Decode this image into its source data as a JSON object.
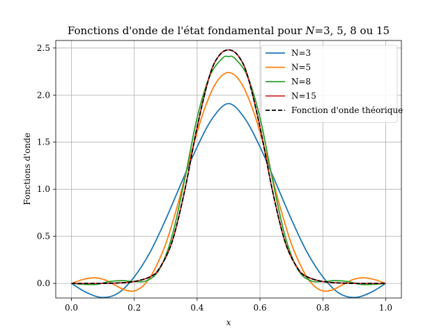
{
  "chart_data": {
    "type": "line",
    "title": "Fonctions d'onde de l'état fondamental pour N=3, 5, 8 ou 15",
    "title_parts": {
      "prefix": "Fonctions d'onde de l'état fondamental pour ",
      "var": "N",
      "suffix": "=3, 5, 8 ou 15"
    },
    "xlabel": "x",
    "ylabel": "Fonctions d'onde",
    "xlim": [
      -0.05,
      1.05
    ],
    "ylim": [
      -0.155,
      2.58
    ],
    "xticks": [
      0.0,
      0.2,
      0.4,
      0.6,
      0.8,
      1.0
    ],
    "xtick_labels": [
      "0.0",
      "0.2",
      "0.4",
      "0.6",
      "0.8",
      "1.0"
    ],
    "yticks": [
      0.0,
      0.5,
      1.0,
      1.5,
      2.0,
      2.5
    ],
    "ytick_labels": [
      "0.0",
      "0.5",
      "1.0",
      "1.5",
      "2.0",
      "2.5"
    ],
    "grid": true,
    "legend_position": "upper-right",
    "series": [
      {
        "name": "N=3",
        "color": "#1f77b4",
        "style": "solid",
        "x": [
          0,
          0.05,
          0.1,
          0.15,
          0.2,
          0.25,
          0.3,
          0.35,
          0.4,
          0.45,
          0.5,
          0.55,
          0.6,
          0.65,
          0.7,
          0.75,
          0.8,
          0.85,
          0.9,
          0.95,
          1.0
        ],
        "y": [
          0.0,
          -0.1,
          -0.15,
          -0.1,
          0.07,
          0.33,
          0.68,
          1.07,
          1.45,
          1.76,
          1.91,
          1.76,
          1.45,
          1.07,
          0.68,
          0.33,
          0.07,
          -0.1,
          -0.15,
          -0.1,
          0.0
        ]
      },
      {
        "name": "N=5",
        "color": "#ff7f0e",
        "style": "solid",
        "x": [
          0,
          0.035,
          0.07,
          0.105,
          0.14,
          0.17,
          0.2,
          0.23,
          0.26,
          0.3,
          0.34,
          0.38,
          0.42,
          0.46,
          0.5,
          0.54,
          0.58,
          0.62,
          0.66,
          0.7,
          0.74,
          0.77,
          0.8,
          0.83,
          0.86,
          0.895,
          0.93,
          0.965,
          1.0
        ],
        "y": [
          0.0,
          0.04,
          0.06,
          0.04,
          -0.02,
          -0.07,
          -0.08,
          -0.02,
          0.12,
          0.42,
          0.86,
          1.37,
          1.82,
          2.13,
          2.24,
          2.13,
          1.82,
          1.37,
          0.86,
          0.42,
          0.12,
          -0.02,
          -0.08,
          -0.07,
          -0.02,
          0.04,
          0.06,
          0.04,
          0.0
        ]
      },
      {
        "name": "N=8",
        "color": "#2ca02c",
        "style": "solid",
        "x": [
          0,
          0.04,
          0.08,
          0.12,
          0.16,
          0.2,
          0.24,
          0.28,
          0.32,
          0.36,
          0.4,
          0.44,
          0.48,
          0.5,
          0.52,
          0.56,
          0.6,
          0.64,
          0.68,
          0.72,
          0.76,
          0.8,
          0.84,
          0.88,
          0.92,
          0.96,
          1.0
        ],
        "y": [
          0.0,
          -0.01,
          -0.01,
          0.02,
          0.03,
          0.02,
          0.03,
          0.15,
          0.5,
          1.1,
          1.76,
          2.2,
          2.39,
          2.41,
          2.39,
          2.2,
          1.76,
          1.1,
          0.5,
          0.15,
          0.03,
          0.02,
          0.03,
          0.02,
          -0.01,
          -0.01,
          0.0
        ]
      },
      {
        "name": "N=15",
        "color": "#d62728",
        "style": "solid",
        "x": [
          0,
          0.05,
          0.1,
          0.15,
          0.2,
          0.25,
          0.28,
          0.32,
          0.36,
          0.4,
          0.44,
          0.47,
          0.5,
          0.53,
          0.56,
          0.6,
          0.64,
          0.68,
          0.72,
          0.75,
          0.8,
          0.85,
          0.9,
          0.95,
          1.0
        ],
        "y": [
          0.0,
          0.0,
          0.0,
          0.005,
          0.02,
          0.07,
          0.16,
          0.44,
          0.98,
          1.66,
          2.21,
          2.42,
          2.48,
          2.42,
          2.21,
          1.66,
          0.98,
          0.44,
          0.16,
          0.07,
          0.02,
          0.005,
          0.0,
          0.0,
          0.0
        ]
      },
      {
        "name": "Fonction d'onde théorique",
        "color": "#000000",
        "style": "dashed",
        "x": [
          0,
          0.05,
          0.1,
          0.15,
          0.2,
          0.25,
          0.28,
          0.32,
          0.36,
          0.4,
          0.44,
          0.47,
          0.5,
          0.53,
          0.56,
          0.6,
          0.64,
          0.68,
          0.72,
          0.75,
          0.8,
          0.85,
          0.9,
          0.95,
          1.0
        ],
        "y": [
          0.0,
          0.0,
          0.0,
          0.005,
          0.02,
          0.07,
          0.16,
          0.44,
          0.98,
          1.66,
          2.21,
          2.42,
          2.48,
          2.42,
          2.21,
          1.66,
          0.98,
          0.44,
          0.16,
          0.07,
          0.02,
          0.005,
          0.0,
          0.0,
          0.0
        ]
      }
    ]
  }
}
